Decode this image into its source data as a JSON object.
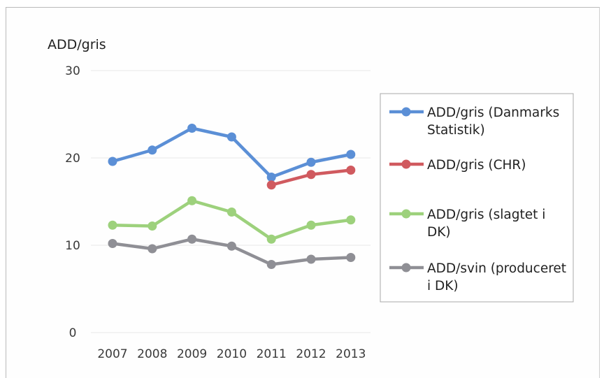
{
  "chart_data": {
    "type": "line",
    "title": "",
    "ylabel": "ADD/gris",
    "xlabel": "",
    "ylim": [
      0,
      30
    ],
    "yticks": [
      0,
      10,
      20,
      30
    ],
    "categories": [
      "2007",
      "2008",
      "2009",
      "2010",
      "2011",
      "2012",
      "2013"
    ],
    "grid": true,
    "legend_position": "right",
    "series": [
      {
        "name": "ADD/gris (Danmarks Statistik)",
        "legend_lines": [
          "ADD/gris (Danmarks",
          "Statistik)"
        ],
        "color": "#5b8fd6",
        "values": [
          19.6,
          20.9,
          23.4,
          22.4,
          17.8,
          19.5,
          20.4
        ]
      },
      {
        "name": "ADD/gris (CHR)",
        "legend_lines": [
          "ADD/gris (CHR)"
        ],
        "color": "#d05a5f",
        "values": [
          null,
          null,
          null,
          null,
          16.9,
          18.1,
          18.6
        ]
      },
      {
        "name": "ADD/gris (slagtet i DK)",
        "legend_lines": [
          "ADD/gris (slagtet i",
          "DK)"
        ],
        "color": "#9dd17c",
        "values": [
          12.3,
          12.2,
          15.1,
          13.8,
          10.7,
          12.3,
          12.9
        ]
      },
      {
        "name": "ADD/svin (produceret i DK)",
        "legend_lines": [
          "ADD/svin (produceret",
          "i DK)"
        ],
        "color": "#8f8f95",
        "values": [
          10.2,
          9.6,
          10.7,
          9.9,
          7.8,
          8.4,
          8.6
        ]
      }
    ]
  }
}
